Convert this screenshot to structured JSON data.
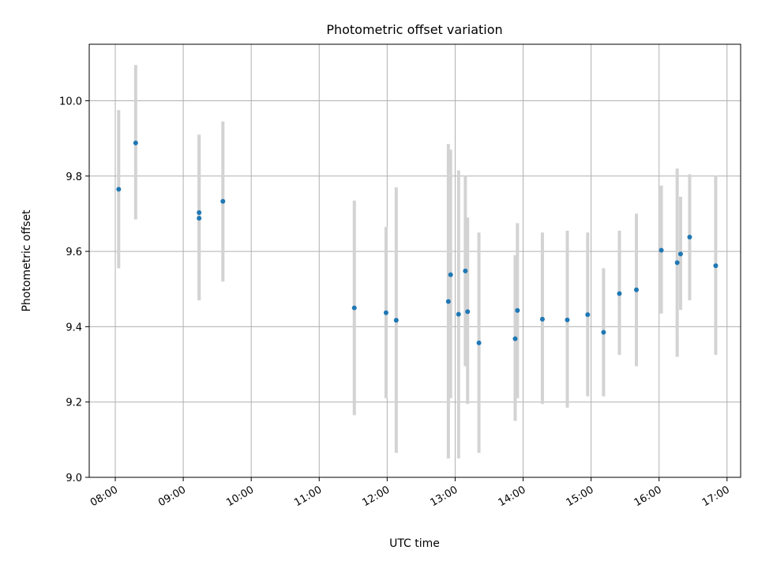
{
  "chart_data": {
    "type": "scatter",
    "title": "Photometric offset variation",
    "xlabel": "UTC time",
    "ylabel": "Photometric offset",
    "xlim": [
      "07:37",
      "17:12"
    ],
    "ylim": [
      9.0,
      10.15
    ],
    "grid": true,
    "x_ticks": [
      "08:00",
      "09:00",
      "10:00",
      "11:00",
      "12:00",
      "13:00",
      "14:00",
      "15:00",
      "16:00",
      "17:00"
    ],
    "y_ticks": [
      "9.0",
      "9.2",
      "9.4",
      "9.6",
      "9.8",
      "10.0"
    ],
    "points": [
      {
        "x": "08:03",
        "y": 9.765,
        "err_low": 9.555,
        "err_high": 9.975
      },
      {
        "x": "08:18",
        "y": 9.888,
        "err_low": 9.685,
        "err_high": 10.095
      },
      {
        "x": "09:14",
        "y": 9.703,
        "err_low": 9.47,
        "err_high": 9.91
      },
      {
        "x": "09:14",
        "y": 9.688,
        "err_low": 9.47,
        "err_high": 9.905
      },
      {
        "x": "09:35",
        "y": 9.733,
        "err_low": 9.52,
        "err_high": 9.945
      },
      {
        "x": "11:31",
        "y": 9.45,
        "err_low": 9.165,
        "err_high": 9.735
      },
      {
        "x": "11:59",
        "y": 9.437,
        "err_low": 9.21,
        "err_high": 9.665
      },
      {
        "x": "12:08",
        "y": 9.417,
        "err_low": 9.065,
        "err_high": 9.77
      },
      {
        "x": "12:54",
        "y": 9.467,
        "err_low": 9.05,
        "err_high": 9.885
      },
      {
        "x": "12:56",
        "y": 9.538,
        "err_low": 9.21,
        "err_high": 9.87
      },
      {
        "x": "13:03",
        "y": 9.433,
        "err_low": 9.05,
        "err_high": 9.815
      },
      {
        "x": "13:09",
        "y": 9.548,
        "err_low": 9.295,
        "err_high": 9.8
      },
      {
        "x": "13:11",
        "y": 9.44,
        "err_low": 9.195,
        "err_high": 9.69
      },
      {
        "x": "13:21",
        "y": 9.357,
        "err_low": 9.065,
        "err_high": 9.65
      },
      {
        "x": "13:53",
        "y": 9.368,
        "err_low": 9.15,
        "err_high": 9.59
      },
      {
        "x": "13:55",
        "y": 9.443,
        "err_low": 9.21,
        "err_high": 9.675
      },
      {
        "x": "14:17",
        "y": 9.42,
        "err_low": 9.195,
        "err_high": 9.65
      },
      {
        "x": "14:39",
        "y": 9.418,
        "err_low": 9.185,
        "err_high": 9.655
      },
      {
        "x": "14:57",
        "y": 9.432,
        "err_low": 9.215,
        "err_high": 9.65
      },
      {
        "x": "15:11",
        "y": 9.385,
        "err_low": 9.215,
        "err_high": 9.555
      },
      {
        "x": "15:25",
        "y": 9.488,
        "err_low": 9.325,
        "err_high": 9.655
      },
      {
        "x": "15:40",
        "y": 9.498,
        "err_low": 9.295,
        "err_high": 9.7
      },
      {
        "x": "16:02",
        "y": 9.603,
        "err_low": 9.435,
        "err_high": 9.775
      },
      {
        "x": "16:16",
        "y": 9.57,
        "err_low": 9.32,
        "err_high": 9.82
      },
      {
        "x": "16:19",
        "y": 9.593,
        "err_low": 9.445,
        "err_high": 9.745
      },
      {
        "x": "16:27",
        "y": 9.638,
        "err_low": 9.47,
        "err_high": 9.805
      },
      {
        "x": "16:50",
        "y": 9.562,
        "err_low": 9.325,
        "err_high": 9.8
      }
    ],
    "colors": {
      "marker": "#1f77b4",
      "errorbar": "#d3d3d3",
      "grid": "#b0b0b0"
    }
  }
}
